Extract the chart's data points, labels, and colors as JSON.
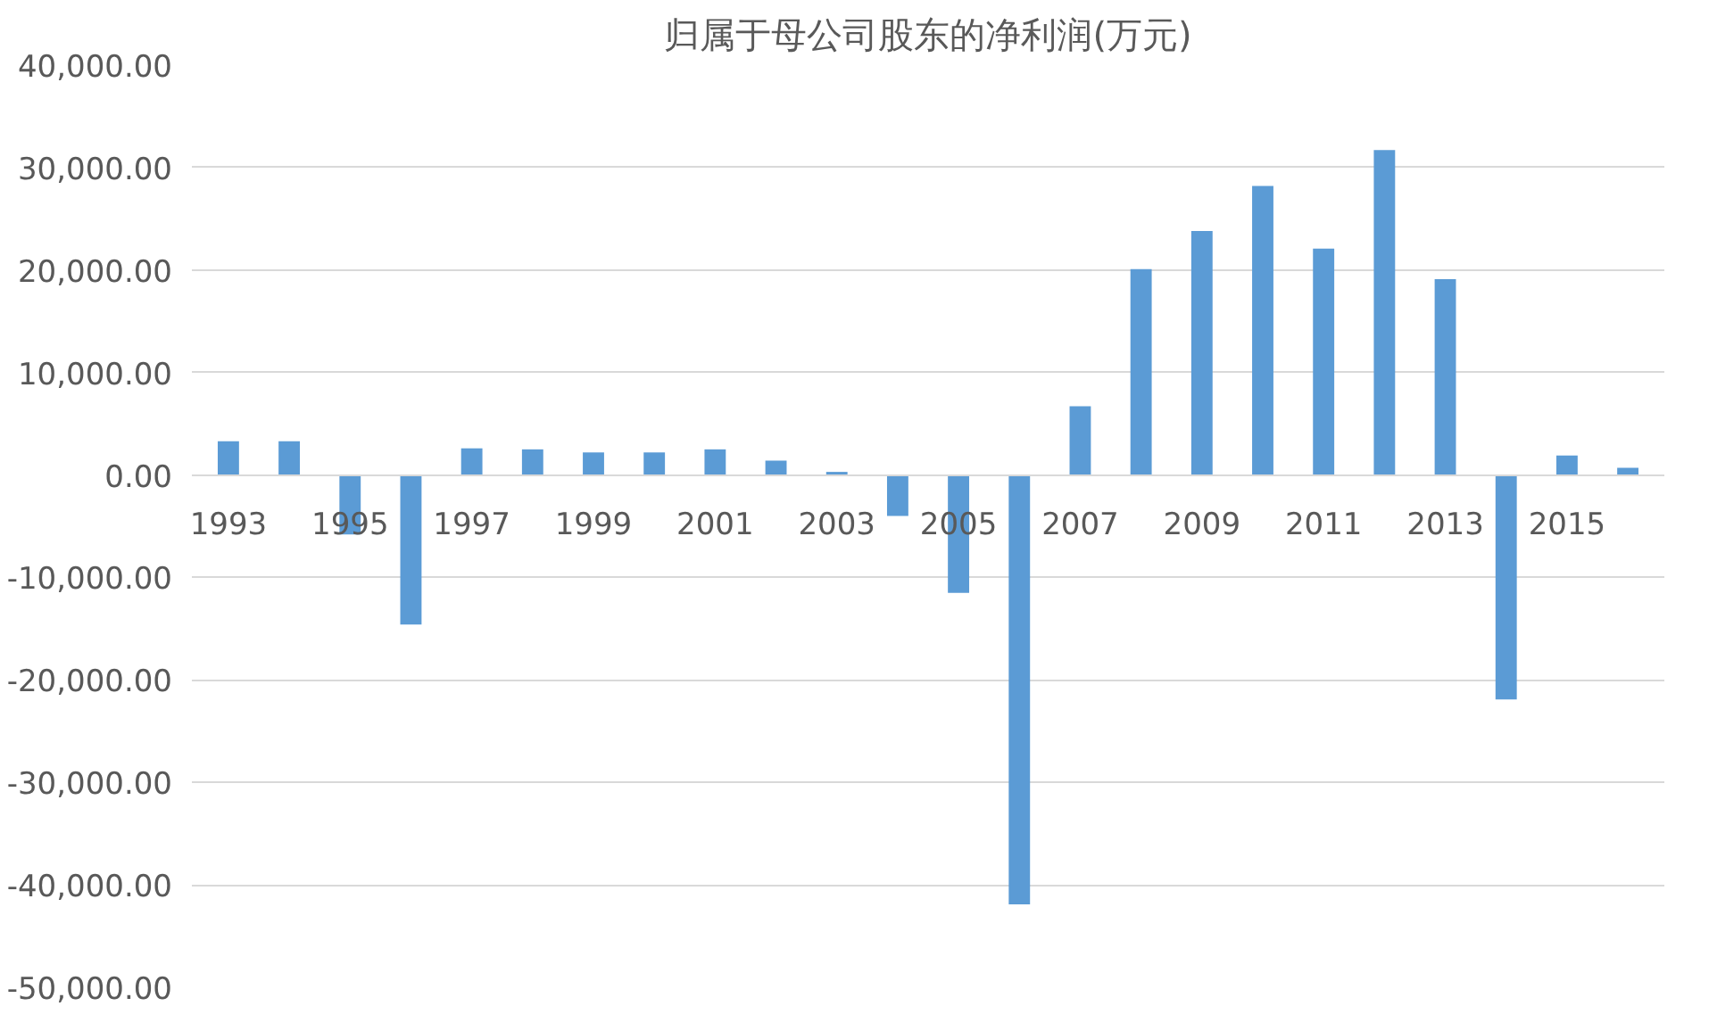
{
  "chart_data": {
    "type": "bar",
    "title": "归属于母公司股东的净利润(万元)",
    "categories": [
      "1993",
      null,
      "1995",
      null,
      "1997",
      null,
      "1999",
      null,
      "2001",
      null,
      "2003",
      null,
      "2005",
      null,
      "2007",
      null,
      "2009",
      null,
      "2011",
      null,
      "2013",
      null,
      "2015",
      null
    ],
    "values": [
      3300,
      3300,
      -5800,
      -14600,
      2600,
      2500,
      2200,
      2200,
      2500,
      1400,
      300,
      -4000,
      -11500,
      -41900,
      6700,
      20100,
      23800,
      28200,
      22100,
      31700,
      19100,
      -21900,
      1900,
      700
    ],
    "color": "#5b9bd5",
    "ylim": [
      -50000,
      40000
    ],
    "yticks": [
      {
        "value": -50000,
        "label": "-50,000.00"
      },
      {
        "value": -40000,
        "label": "-40,000.00"
      },
      {
        "value": -30000,
        "label": "-30,000.00"
      },
      {
        "value": -20000,
        "label": "-20,000.00"
      },
      {
        "value": -10000,
        "label": "-10,000.00"
      },
      {
        "value": 0,
        "label": "0.00"
      },
      {
        "value": 10000,
        "label": "10,000.00"
      },
      {
        "value": 20000,
        "label": "20,000.00"
      },
      {
        "value": 30000,
        "label": "30,000.00"
      },
      {
        "value": 40000,
        "label": "40,000.00"
      }
    ],
    "grid": "y"
  }
}
